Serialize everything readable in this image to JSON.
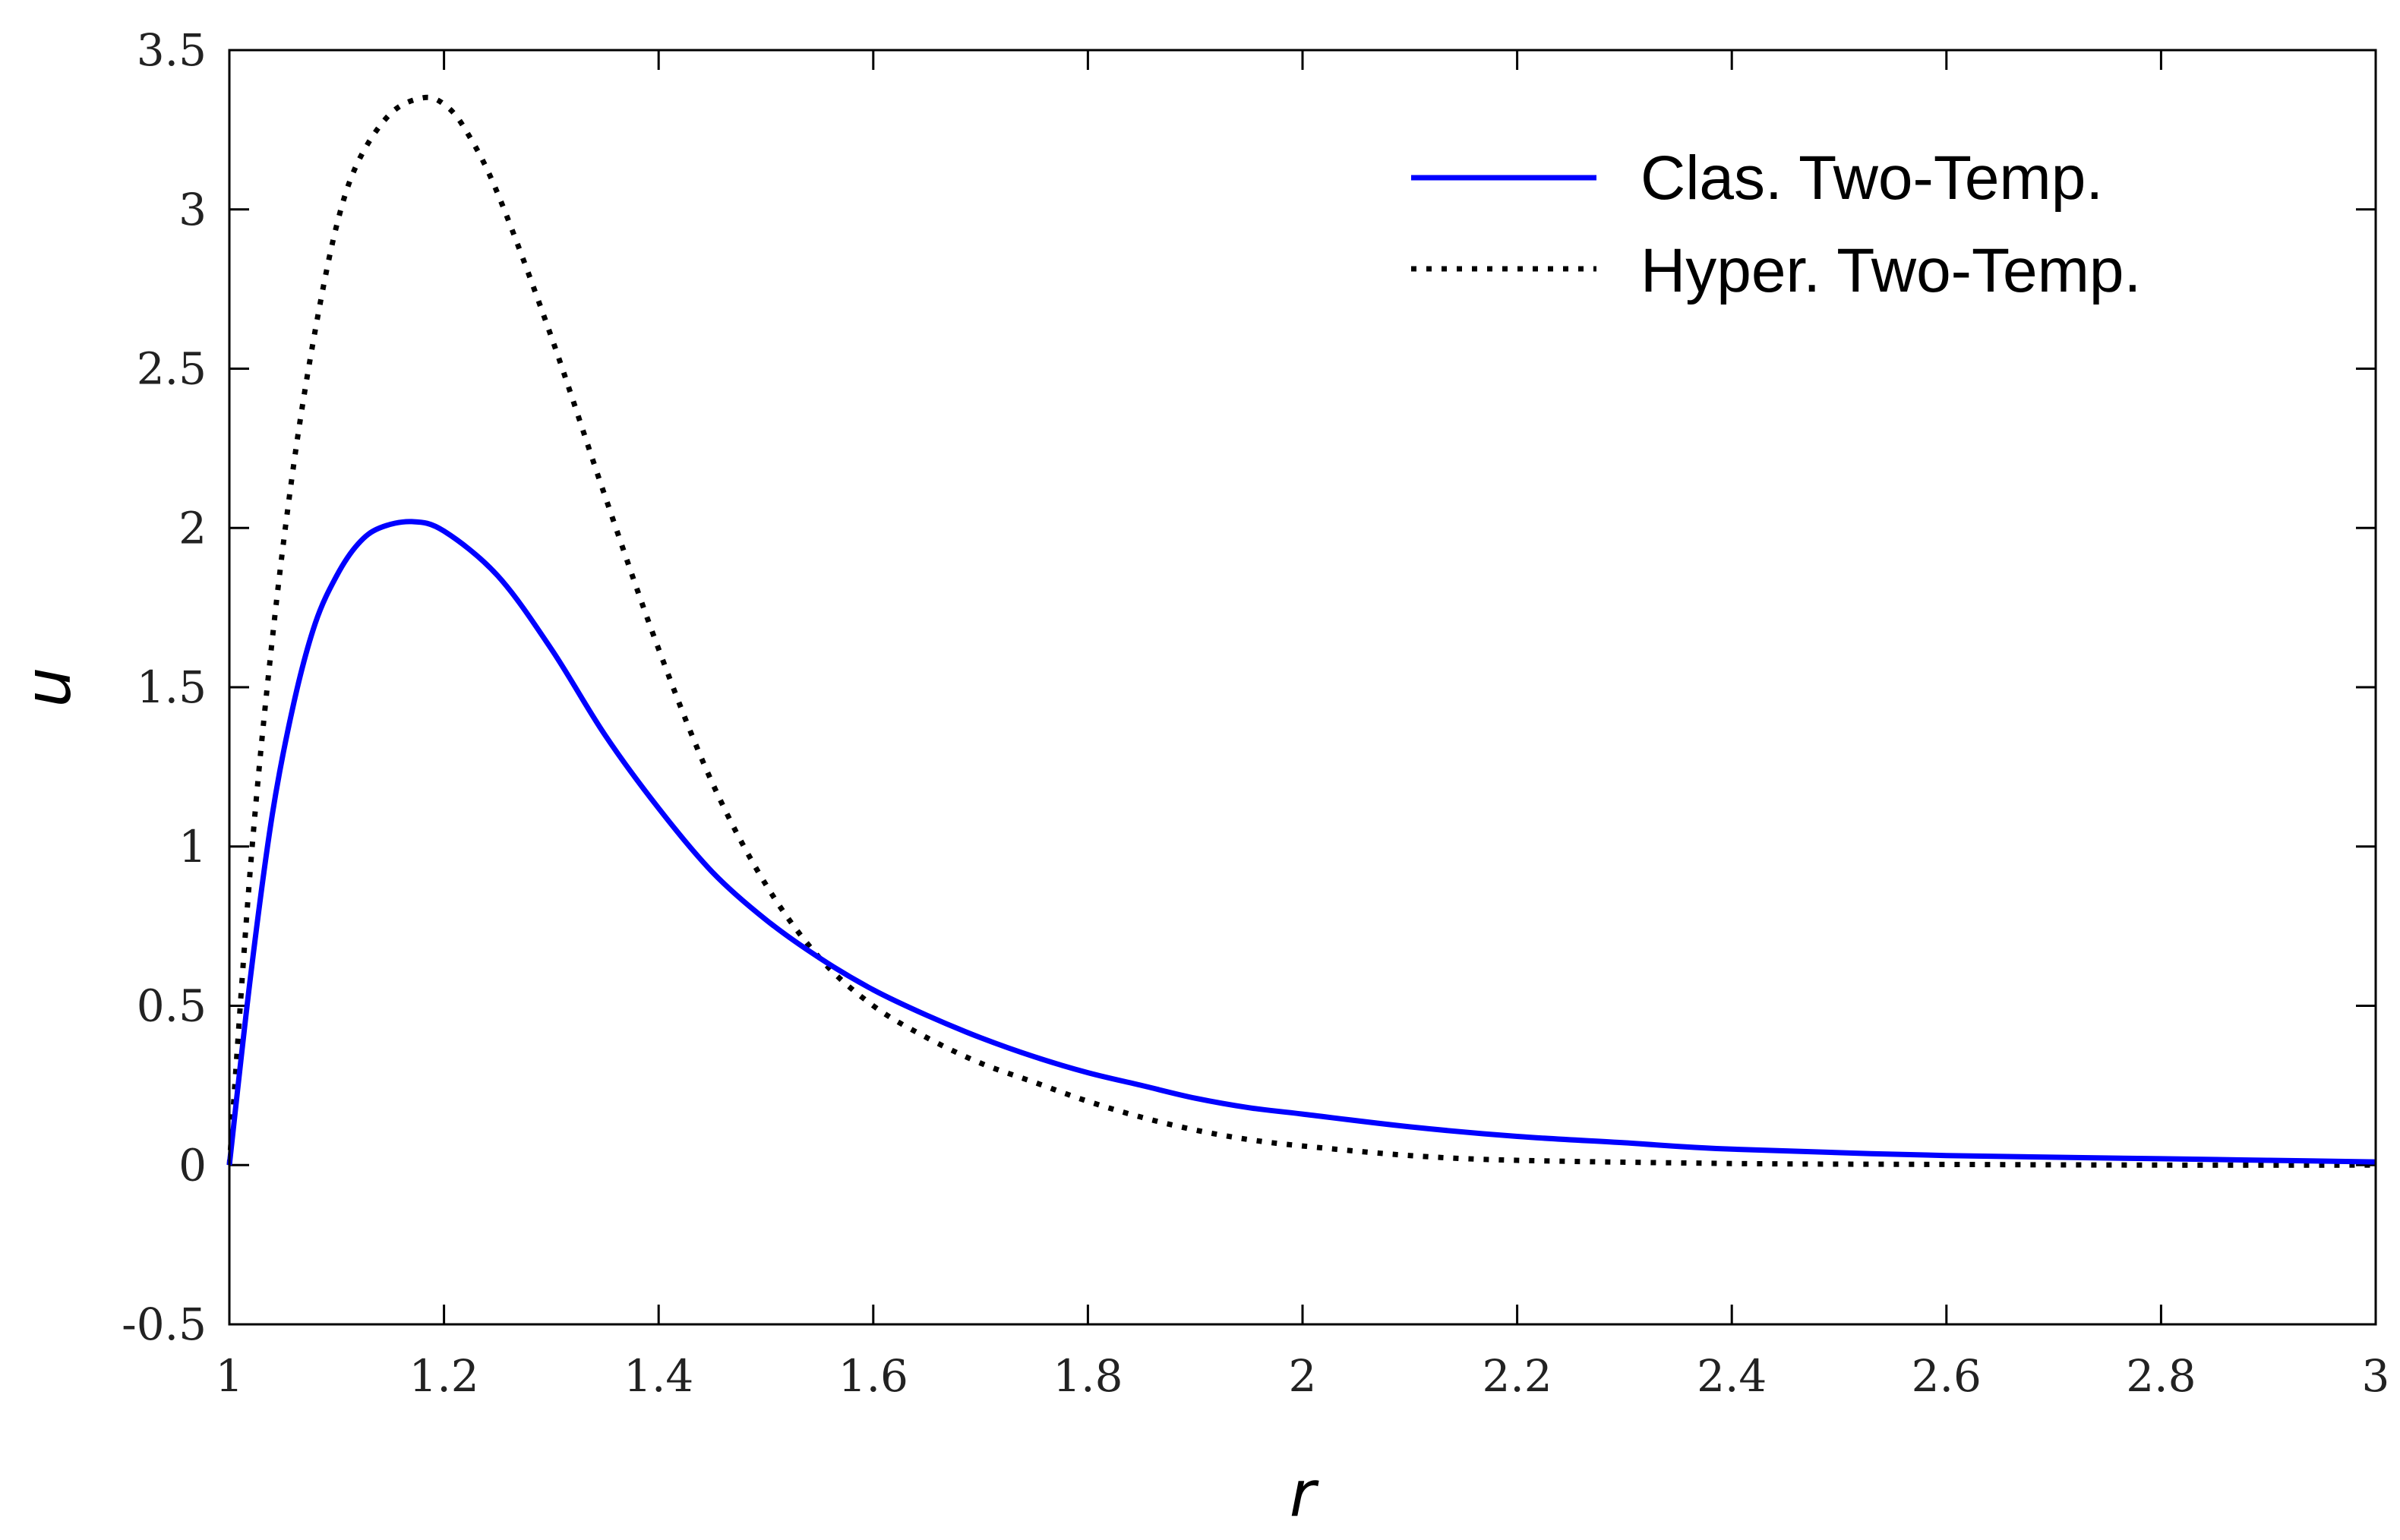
{
  "chart_data": {
    "type": "line",
    "xlabel": "r",
    "ylabel": "u",
    "xlim": [
      1,
      3
    ],
    "ylim": [
      -0.5,
      3.5
    ],
    "xticks": [
      "1",
      "1.2",
      "1.4",
      "1.6",
      "1.8",
      "2",
      "2.2",
      "2.4",
      "2.6",
      "2.8",
      "3"
    ],
    "yticks": [
      "-0.5",
      "0",
      "0.5",
      "1",
      "1.5",
      "2",
      "2.5",
      "3",
      "3.5"
    ],
    "grid": false,
    "legend_position": "top-right",
    "series": [
      {
        "name": "Clas. Two-Temp.",
        "color": "#0000ff",
        "style": "solid",
        "x": [
          1.0,
          1.02,
          1.04,
          1.06,
          1.08,
          1.1,
          1.12,
          1.14,
          1.17,
          1.2,
          1.25,
          1.3,
          1.35,
          1.4,
          1.45,
          1.5,
          1.55,
          1.6,
          1.65,
          1.7,
          1.75,
          1.8,
          1.85,
          1.9,
          1.95,
          2.0,
          2.1,
          2.2,
          2.3,
          2.4,
          2.6,
          2.8,
          3.0
        ],
        "y": [
          0.0,
          0.6,
          1.1,
          1.45,
          1.7,
          1.85,
          1.95,
          2.0,
          2.02,
          1.99,
          1.85,
          1.62,
          1.35,
          1.12,
          0.92,
          0.77,
          0.65,
          0.55,
          0.47,
          0.4,
          0.34,
          0.29,
          0.25,
          0.21,
          0.18,
          0.16,
          0.12,
          0.09,
          0.07,
          0.05,
          0.03,
          0.02,
          0.01
        ]
      },
      {
        "name": "Hyper. Two-Temp.",
        "color": "#000000",
        "style": "dotted",
        "x": [
          1.0,
          1.02,
          1.04,
          1.06,
          1.08,
          1.1,
          1.12,
          1.15,
          1.18,
          1.2,
          1.22,
          1.25,
          1.3,
          1.35,
          1.4,
          1.45,
          1.5,
          1.55,
          1.6,
          1.65,
          1.7,
          1.75,
          1.8,
          1.85,
          1.9,
          1.95,
          2.0,
          2.1,
          2.2,
          2.4,
          2.6,
          2.8,
          3.0
        ],
        "y": [
          0.0,
          0.95,
          1.65,
          2.2,
          2.62,
          2.95,
          3.15,
          3.3,
          3.35,
          3.33,
          3.25,
          3.05,
          2.6,
          2.1,
          1.62,
          1.2,
          0.88,
          0.65,
          0.5,
          0.4,
          0.32,
          0.26,
          0.2,
          0.15,
          0.11,
          0.08,
          0.06,
          0.03,
          0.015,
          0.005,
          0.002,
          0.0,
          0.0
        ]
      }
    ]
  }
}
